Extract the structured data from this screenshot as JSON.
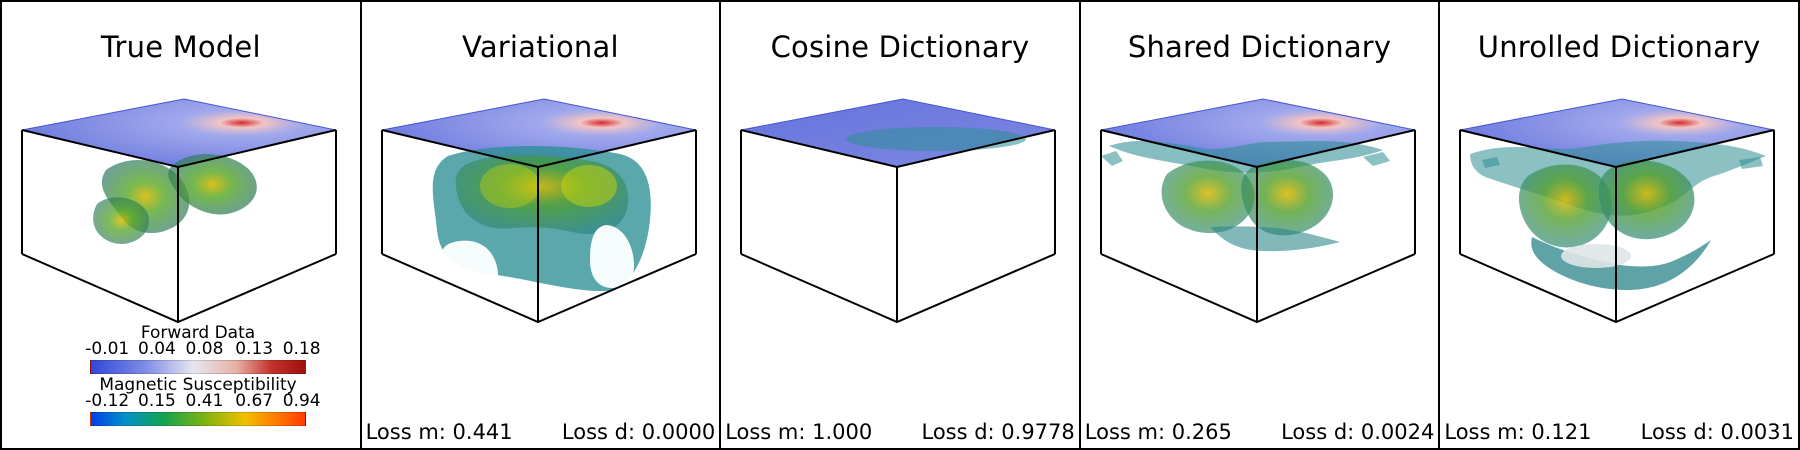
{
  "colors": {
    "plane": "#5a68d8",
    "plane_edge": "#3040c0",
    "body_outer": "#2c8c86",
    "body_mid": "#2f7f2f",
    "body_core": "#b5b300",
    "void": "#ffffff"
  },
  "panels": [
    {
      "title": "True Model",
      "loss_m": "",
      "loss_d": "",
      "has_colorbars": true
    },
    {
      "title": "Variational",
      "loss_m": "Loss m: 0.441",
      "loss_d": "Loss d: 0.0000",
      "has_colorbars": false
    },
    {
      "title": "Cosine Dictionary",
      "loss_m": "Loss m: 1.000",
      "loss_d": "Loss d: 0.9778",
      "has_colorbars": false
    },
    {
      "title": "Shared Dictionary",
      "loss_m": "Loss m: 0.265",
      "loss_d": "Loss d: 0.0024",
      "has_colorbars": false
    },
    {
      "title": "Unrolled Dictionary",
      "loss_m": "Loss m: 0.121",
      "loss_d": "Loss d: 0.0031",
      "has_colorbars": false
    }
  ],
  "colorbars": {
    "forward_data": {
      "title": "Forward Data",
      "ticks": [
        "-0.01",
        "0.04",
        "0.08",
        "0.13",
        "0.18"
      ]
    },
    "magnetic_susceptibility": {
      "title": "Magnetic Susceptibility",
      "ticks": [
        "-0.12",
        "0.15",
        "0.41",
        "0.67",
        "0.94"
      ]
    }
  }
}
